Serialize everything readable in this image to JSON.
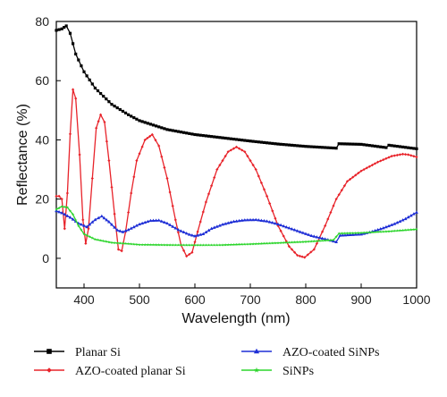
{
  "chart_data": {
    "type": "line",
    "title": "",
    "xlabel": "Wavelength (nm)",
    "ylabel": "Reflectance (%)",
    "xlim": [
      350,
      1000
    ],
    "ylim": [
      -10,
      80
    ],
    "xticks": [
      400,
      500,
      600,
      700,
      800,
      900,
      1000
    ],
    "yticks": [
      0,
      20,
      40,
      60,
      80
    ],
    "grid": false,
    "legend_position": "bottom",
    "series": [
      {
        "name": "Planar Si",
        "color": "#000000",
        "marker": "square",
        "points": [
          [
            350,
            77
          ],
          [
            360,
            77.5
          ],
          [
            368,
            78.5
          ],
          [
            375,
            76
          ],
          [
            385,
            69
          ],
          [
            400,
            63
          ],
          [
            420,
            57.5
          ],
          [
            450,
            52
          ],
          [
            480,
            48.5
          ],
          [
            500,
            46.5
          ],
          [
            550,
            43.5
          ],
          [
            600,
            41.8
          ],
          [
            650,
            40.7
          ],
          [
            700,
            39.6
          ],
          [
            750,
            38.6
          ],
          [
            800,
            37.8
          ],
          [
            855,
            37.2
          ],
          [
            860,
            38.7
          ],
          [
            900,
            38.5
          ],
          [
            945,
            37.4
          ],
          [
            950,
            38.2
          ],
          [
            1000,
            37
          ]
        ]
      },
      {
        "name": "AZO-coated planar Si",
        "color": "#e8232a",
        "marker": "diamond",
        "points": [
          [
            350,
            21
          ],
          [
            355,
            21
          ],
          [
            360,
            20
          ],
          [
            365,
            10
          ],
          [
            370,
            22
          ],
          [
            375,
            42
          ],
          [
            380,
            57
          ],
          [
            385,
            54
          ],
          [
            392,
            35
          ],
          [
            398,
            13
          ],
          [
            403,
            5
          ],
          [
            408,
            10
          ],
          [
            415,
            27
          ],
          [
            422,
            44
          ],
          [
            430,
            48.5
          ],
          [
            437,
            46
          ],
          [
            445,
            33
          ],
          [
            455,
            15
          ],
          [
            462,
            3
          ],
          [
            468,
            2.5
          ],
          [
            475,
            9
          ],
          [
            485,
            22
          ],
          [
            495,
            33
          ],
          [
            510,
            40
          ],
          [
            523,
            41.8
          ],
          [
            535,
            38
          ],
          [
            550,
            27
          ],
          [
            565,
            13
          ],
          [
            575,
            4.5
          ],
          [
            585,
            0.7
          ],
          [
            595,
            2
          ],
          [
            605,
            9
          ],
          [
            620,
            19
          ],
          [
            640,
            30
          ],
          [
            660,
            36
          ],
          [
            675,
            37.6
          ],
          [
            690,
            36
          ],
          [
            710,
            30
          ],
          [
            730,
            21
          ],
          [
            750,
            11
          ],
          [
            770,
            4
          ],
          [
            785,
            1
          ],
          [
            798,
            0.3
          ],
          [
            815,
            3
          ],
          [
            835,
            11
          ],
          [
            855,
            20
          ],
          [
            875,
            26
          ],
          [
            900,
            29.5
          ],
          [
            930,
            32.5
          ],
          [
            955,
            34.5
          ],
          [
            975,
            35.2
          ],
          [
            985,
            35
          ],
          [
            1000,
            34.2
          ]
        ]
      },
      {
        "name": "AZO-coated SiNPs",
        "color": "#1f2fd6",
        "marker": "triangle",
        "points": [
          [
            350,
            16
          ],
          [
            360,
            15.3
          ],
          [
            375,
            13.8
          ],
          [
            390,
            11.8
          ],
          [
            405,
            10.6
          ],
          [
            420,
            13
          ],
          [
            432,
            14.2
          ],
          [
            445,
            12.3
          ],
          [
            460,
            9.5
          ],
          [
            470,
            8.9
          ],
          [
            480,
            9.6
          ],
          [
            500,
            11.5
          ],
          [
            520,
            12.7
          ],
          [
            535,
            12.8
          ],
          [
            550,
            11.8
          ],
          [
            570,
            9.6
          ],
          [
            590,
            8
          ],
          [
            600,
            7.5
          ],
          [
            615,
            8.2
          ],
          [
            630,
            10
          ],
          [
            650,
            11.4
          ],
          [
            670,
            12.4
          ],
          [
            690,
            12.9
          ],
          [
            710,
            13
          ],
          [
            730,
            12.5
          ],
          [
            750,
            11.5
          ],
          [
            770,
            10.2
          ],
          [
            790,
            8.9
          ],
          [
            810,
            7.6
          ],
          [
            830,
            6.7
          ],
          [
            845,
            6
          ],
          [
            855,
            5.5
          ],
          [
            862,
            7.7
          ],
          [
            880,
            7.9
          ],
          [
            900,
            8.1
          ],
          [
            920,
            9
          ],
          [
            940,
            10.2
          ],
          [
            960,
            11.6
          ],
          [
            980,
            13.3
          ],
          [
            1000,
            15.5
          ]
        ]
      },
      {
        "name": "SiNPs",
        "color": "#2cd52c",
        "marker": "star",
        "points": [
          [
            350,
            16.5
          ],
          [
            360,
            17.5
          ],
          [
            370,
            17.2
          ],
          [
            380,
            14.8
          ],
          [
            390,
            11
          ],
          [
            400,
            8.2
          ],
          [
            420,
            6.4
          ],
          [
            450,
            5.3
          ],
          [
            480,
            4.9
          ],
          [
            500,
            4.6
          ],
          [
            550,
            4.5
          ],
          [
            600,
            4.45
          ],
          [
            650,
            4.5
          ],
          [
            700,
            4.8
          ],
          [
            750,
            5.2
          ],
          [
            800,
            5.6
          ],
          [
            850,
            6.2
          ],
          [
            860,
            8.4
          ],
          [
            900,
            8.6
          ],
          [
            950,
            9.1
          ],
          [
            1000,
            9.8
          ]
        ]
      }
    ]
  }
}
